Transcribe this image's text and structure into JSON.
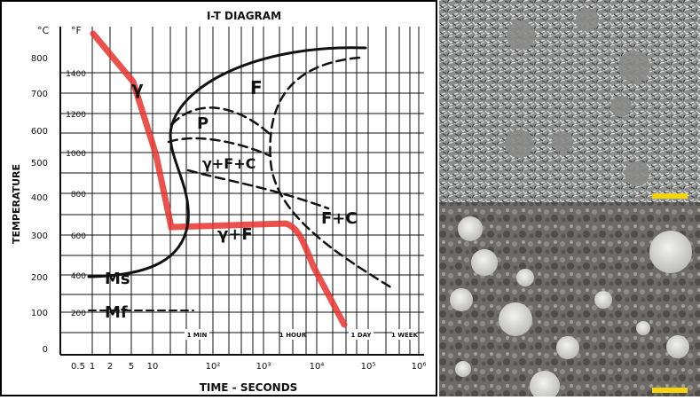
{
  "diagram": {
    "title": "I-T DIAGRAM",
    "celsius_unit": "°C",
    "fahrenheit_unit": "°F",
    "y_label": "TEMPERATURE",
    "x_label": "TIME - SECONDS",
    "celsius_ticks": [
      "800",
      "700",
      "600",
      "500",
      "400",
      "300",
      "200",
      "100",
      "0"
    ],
    "fahrenheit_ticks": [
      "1400",
      "1200",
      "1000",
      "800",
      "600",
      "400",
      "200"
    ],
    "time_ticks": [
      "0.5",
      "1",
      "2",
      "5",
      "10",
      "10²",
      "10³",
      "10⁴",
      "10⁵",
      "10⁶"
    ],
    "time_markers": [
      "1 MIN",
      "1 HOUR",
      "1 DAY",
      "1 WEEK"
    ],
    "regions": [
      "γ",
      "F",
      "P",
      "γ+F+C",
      "F+C",
      "γ+F",
      "Ms",
      "Mf"
    ]
  }
}
